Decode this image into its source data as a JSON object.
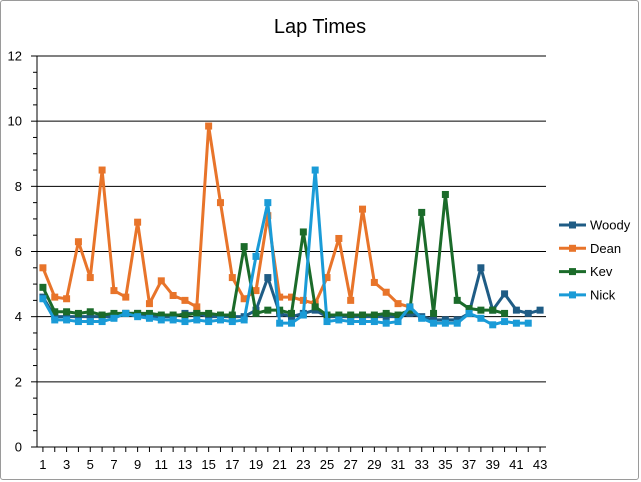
{
  "chart_data": {
    "type": "line",
    "title": "Lap Times",
    "xlabel": "",
    "ylabel": "",
    "ylim": [
      0,
      12
    ],
    "yticks": [
      0,
      2,
      4,
      6,
      8,
      10,
      12
    ],
    "xticks": [
      1,
      3,
      5,
      7,
      9,
      11,
      13,
      15,
      17,
      19,
      21,
      23,
      25,
      27,
      29,
      31,
      33,
      35,
      37,
      39,
      41,
      43
    ],
    "grid": "horizontal",
    "legend_position": "right",
    "series": [
      {
        "name": "Woody",
        "color": "#1f5c85",
        "x": [
          1,
          2,
          3,
          4,
          5,
          6,
          7,
          8,
          9,
          10,
          11,
          12,
          13,
          14,
          15,
          16,
          17,
          18,
          19,
          20,
          21,
          22,
          23,
          24,
          25,
          26,
          27,
          28,
          29,
          30,
          31,
          32,
          33,
          34,
          35,
          36,
          37,
          38,
          39,
          40,
          41,
          42,
          43
        ],
        "y": [
          4.6,
          4.0,
          4.0,
          4.0,
          4.0,
          4.0,
          4.0,
          4.1,
          4.1,
          4.0,
          4.0,
          4.0,
          4.1,
          4.1,
          4.0,
          4.0,
          4.0,
          4.0,
          4.2,
          5.2,
          4.1,
          4.0,
          4.1,
          4.2,
          4.0,
          4.0,
          4.0,
          4.0,
          4.0,
          4.0,
          4.0,
          4.1,
          4.0,
          3.9,
          3.9,
          3.9,
          4.1,
          5.5,
          4.2,
          4.7,
          4.2,
          4.1,
          4.2
        ]
      },
      {
        "name": "Dean",
        "color": "#e8742a",
        "x": [
          1,
          2,
          3,
          4,
          5,
          6,
          7,
          8,
          9,
          10,
          11,
          12,
          13,
          14,
          15,
          16,
          17,
          18,
          19,
          20,
          21,
          22,
          23,
          24,
          25,
          26,
          27,
          28,
          29,
          30,
          31,
          32
        ],
        "y": [
          5.5,
          4.6,
          4.55,
          6.3,
          5.2,
          8.5,
          4.8,
          4.6,
          6.9,
          4.4,
          5.1,
          4.65,
          4.5,
          4.3,
          9.85,
          7.5,
          5.2,
          4.55,
          4.8,
          7.1,
          4.6,
          4.6,
          4.5,
          4.4,
          5.2,
          6.4,
          4.5,
          7.3,
          5.05,
          4.75,
          4.4,
          4.3
        ]
      },
      {
        "name": "Kev",
        "color": "#1b6b2a",
        "x": [
          1,
          2,
          3,
          4,
          5,
          6,
          7,
          8,
          9,
          10,
          11,
          12,
          13,
          14,
          15,
          16,
          17,
          18,
          19,
          20,
          21,
          22,
          23,
          24,
          25,
          26,
          27,
          28,
          29,
          30,
          31,
          32,
          33,
          34,
          35,
          36,
          37,
          38,
          39,
          40
        ],
        "y": [
          4.9,
          4.15,
          4.15,
          4.1,
          4.15,
          4.05,
          4.1,
          4.1,
          4.1,
          4.1,
          4.05,
          4.05,
          4.05,
          4.1,
          4.1,
          4.05,
          4.05,
          6.15,
          4.1,
          4.2,
          4.2,
          4.1,
          6.6,
          4.3,
          4.05,
          4.05,
          4.05,
          4.05,
          4.05,
          4.1,
          4.05,
          4.2,
          7.2,
          4.1,
          7.75,
          4.5,
          4.25,
          4.2,
          4.2,
          4.1
        ]
      },
      {
        "name": "Nick",
        "color": "#1a9bd7",
        "x": [
          1,
          2,
          3,
          4,
          5,
          6,
          7,
          8,
          9,
          10,
          11,
          12,
          13,
          14,
          15,
          16,
          17,
          18,
          19,
          20,
          21,
          22,
          23,
          24,
          25,
          26,
          27,
          28,
          29,
          30,
          31,
          32,
          33,
          34,
          35,
          36,
          37,
          38,
          39,
          40,
          41,
          42
        ],
        "y": [
          4.55,
          3.9,
          3.9,
          3.85,
          3.85,
          3.85,
          3.95,
          4.1,
          4.0,
          3.95,
          3.9,
          3.9,
          3.85,
          3.9,
          3.85,
          3.9,
          3.85,
          3.9,
          5.85,
          7.5,
          3.8,
          3.8,
          4.05,
          8.5,
          3.85,
          3.9,
          3.85,
          3.85,
          3.85,
          3.8,
          3.85,
          4.3,
          3.95,
          3.8,
          3.8,
          3.8,
          4.1,
          3.95,
          3.75,
          3.85,
          3.8,
          3.8
        ]
      }
    ]
  }
}
